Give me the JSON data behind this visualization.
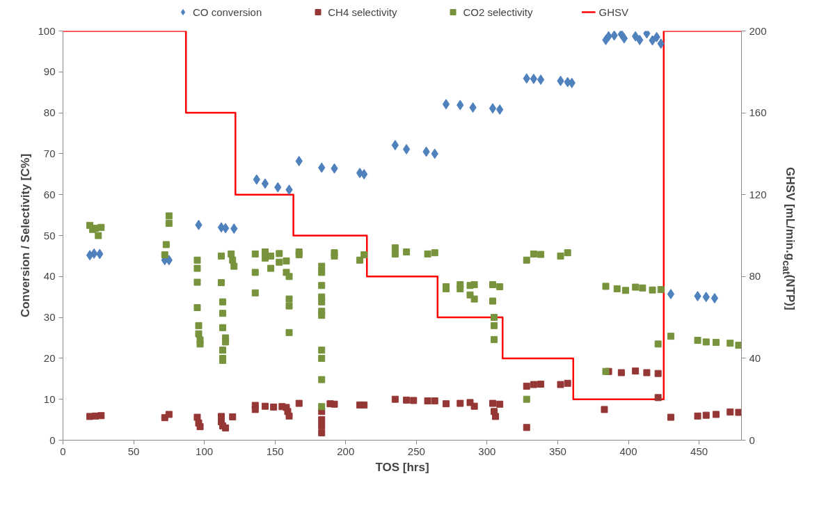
{
  "chart_data": {
    "type": "scatter",
    "xlabel": "TOS [hrs]",
    "ylabel": "Conversion / Selectivity [C%]",
    "y2label": "GHSV [mL/min.g$_{cat}$(NTP)]",
    "xlim": [
      0,
      480
    ],
    "xticks": [
      0,
      50,
      100,
      150,
      200,
      250,
      300,
      350,
      400,
      450
    ],
    "ylim": [
      0,
      100
    ],
    "yticks": [
      0,
      10,
      20,
      30,
      40,
      50,
      60,
      70,
      80,
      90,
      100
    ],
    "y2lim": [
      0,
      200
    ],
    "y2ticks": [
      0,
      40,
      80,
      120,
      160,
      200
    ],
    "grid": false,
    "legend": "top",
    "series": [
      {
        "name": "CO conversion",
        "color": "#4f81bd",
        "marker": "diamond",
        "x": [
          19,
          22,
          26,
          72,
          75,
          96,
          112,
          115,
          121,
          137,
          143,
          152,
          160,
          167,
          183,
          192,
          210,
          213,
          235,
          243,
          257,
          263,
          271,
          281,
          290,
          304,
          309,
          328,
          333,
          338,
          352,
          357,
          360,
          384,
          386,
          390,
          395,
          397,
          405,
          408,
          413,
          417,
          420,
          423,
          430,
          449,
          455,
          461
        ],
        "values": [
          45.2,
          45.6,
          45.5,
          44,
          44,
          52.6,
          52,
          51.8,
          51.7,
          63.7,
          62.7,
          61.8,
          61.2,
          68.2,
          66.6,
          66.4,
          65.3,
          65,
          72.1,
          71.1,
          70.5,
          70,
          82.1,
          81.9,
          81.3,
          81.1,
          80.8,
          88.4,
          88.3,
          88.1,
          87.8,
          87.5,
          87.3,
          97.8,
          98.7,
          98.9,
          99.2,
          98.2,
          98.7,
          97.8,
          99.4,
          97.7,
          98.5,
          96.9,
          35.7,
          35.2,
          35,
          34.7
        ]
      },
      {
        "name": "CH4 selectivity",
        "color": "#953735",
        "marker": "square",
        "x": [
          19,
          23,
          27,
          72,
          75,
          95,
          96,
          97,
          112,
          112,
          113,
          115,
          120,
          136,
          136,
          143,
          149,
          155,
          158,
          159,
          160,
          167,
          183,
          183,
          183,
          183,
          189,
          192,
          210,
          213,
          235,
          243,
          248,
          258,
          263,
          271,
          281,
          288,
          291,
          304,
          305,
          306,
          309,
          328,
          328,
          333,
          338,
          352,
          357,
          383,
          386,
          395,
          405,
          413,
          421,
          421,
          430,
          449,
          455,
          462,
          472,
          478
        ],
        "values": [
          5.8,
          5.9,
          6.0,
          5.5,
          6.3,
          5.6,
          4.2,
          3.3,
          5.8,
          4.5,
          3.5,
          3.0,
          5.7,
          8.5,
          7.5,
          8.3,
          8.1,
          8.2,
          8.0,
          7.0,
          5.9,
          9.0,
          7,
          5,
          3.5,
          1.8,
          8.9,
          8.8,
          8.6,
          8.6,
          10,
          9.8,
          9.7,
          9.6,
          9.6,
          8.9,
          9,
          9.2,
          8.3,
          9,
          7,
          5.8,
          8.8,
          13.2,
          3.1,
          13.6,
          13.7,
          13.6,
          13.9,
          7.5,
          16.8,
          16.5,
          16.9,
          16.5,
          16.3,
          10.4,
          5.6,
          5.9,
          6.1,
          6.3,
          6.9,
          6.8
        ]
      },
      {
        "name": "CO2 selectivity",
        "color": "#77933c",
        "marker": "square",
        "x": [
          19,
          21,
          23,
          25,
          27,
          73,
          75,
          75,
          72,
          95,
          95,
          95,
          95,
          96,
          96,
          97,
          97,
          112,
          112,
          113,
          113,
          113,
          113,
          113,
          113,
          115,
          115,
          119,
          120,
          121,
          136,
          136,
          136,
          143,
          143,
          147,
          147,
          153,
          153,
          158,
          158,
          160,
          160,
          160,
          160,
          167,
          167,
          183,
          183,
          183,
          183,
          183,
          183,
          183,
          183,
          183,
          183,
          183,
          192,
          192,
          210,
          213,
          235,
          235,
          243,
          258,
          263,
          271,
          271,
          281,
          281,
          288,
          288,
          291,
          291,
          304,
          304,
          305,
          305,
          305,
          309,
          328,
          328,
          333,
          338,
          352,
          357,
          384,
          384,
          392,
          398,
          405,
          410,
          417,
          423,
          421,
          430,
          449,
          455,
          462,
          472,
          478
        ],
        "values": [
          52.5,
          51.5,
          51.8,
          50,
          52,
          47.8,
          54.8,
          53,
          45.3,
          44,
          42,
          38.6,
          32.4,
          28,
          26,
          24.5,
          23.5,
          45,
          38.5,
          33.8,
          31,
          27.5,
          22,
          20,
          19.5,
          25,
          24,
          45.5,
          44,
          42.5,
          45.5,
          41,
          36,
          46,
          44.5,
          45,
          42,
          45.6,
          43.5,
          43.8,
          41,
          40,
          34.5,
          32.8,
          26.3,
          46,
          45.3,
          42.5,
          41,
          37.8,
          35,
          33.8,
          31.5,
          30.5,
          22,
          20,
          14.8,
          8.2,
          45.8,
          45,
          44,
          45.3,
          47,
          45.5,
          46,
          45.5,
          45.8,
          37.5,
          37,
          38,
          37,
          37.8,
          35.5,
          38,
          34.5,
          38,
          34,
          30,
          28,
          24.6,
          37.5,
          44,
          10,
          45.5,
          45.4,
          45,
          45.8,
          37.6,
          16.8,
          37,
          36.6,
          37.4,
          37.2,
          36.7,
          36.8,
          23.5,
          25.4,
          24.4,
          24,
          23.9,
          23.7,
          23.2
        ]
      },
      {
        "name": "GHSV",
        "type": "line",
        "axis": "y2",
        "color": "#ff0000",
        "marker": "none",
        "line_style": "solid",
        "x": [
          0,
          87,
          87,
          122,
          122,
          163,
          163,
          215,
          215,
          265,
          265,
          311,
          311,
          361,
          361,
          425,
          425,
          480
        ],
        "values": [
          200,
          200,
          160,
          160,
          120,
          120,
          100,
          100,
          80,
          80,
          60,
          60,
          40,
          40,
          20,
          20,
          200,
          200
        ]
      }
    ]
  }
}
